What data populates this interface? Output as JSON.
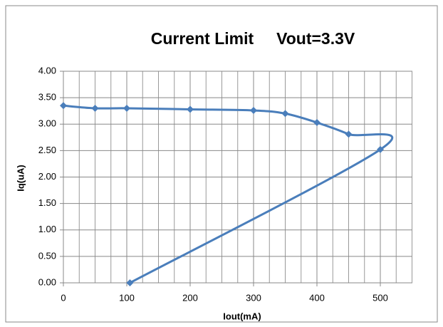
{
  "chart_data": {
    "type": "scatter",
    "title": "Current Limit     Vout=3.3V",
    "x_label": "Iout(mA)",
    "y_label": "Iq(uA)",
    "smooth": true,
    "grid": true,
    "series": [
      {
        "name": "Iq",
        "color": "#4a7ebb",
        "x": [
          0,
          50,
          100,
          200,
          300,
          350,
          400,
          450,
          500,
          105
        ],
        "values": [
          3.35,
          3.3,
          3.3,
          3.28,
          3.26,
          3.2,
          3.03,
          2.81,
          2.52,
          0.0
        ]
      }
    ],
    "xlim": [
      0,
      550
    ],
    "xticks": [
      0,
      100,
      200,
      300,
      400,
      500
    ],
    "xminorticks": [
      25,
      50,
      75,
      125,
      150,
      175,
      225,
      250,
      275,
      325,
      350,
      375,
      425,
      450,
      475,
      525,
      550
    ],
    "ylim": [
      0,
      4
    ],
    "yticks": [
      {
        "value": 0,
        "label": "0.00"
      },
      {
        "value": 0.5,
        "label": "0.50"
      },
      {
        "value": 1,
        "label": "1.00"
      },
      {
        "value": 1.5,
        "label": "1.50"
      },
      {
        "value": 2,
        "label": "2.00"
      },
      {
        "value": 2.5,
        "label": "2.50"
      },
      {
        "value": 3,
        "label": "3.00"
      },
      {
        "value": 3.5,
        "label": "3.50"
      },
      {
        "value": 4,
        "label": "4.00"
      }
    ]
  }
}
